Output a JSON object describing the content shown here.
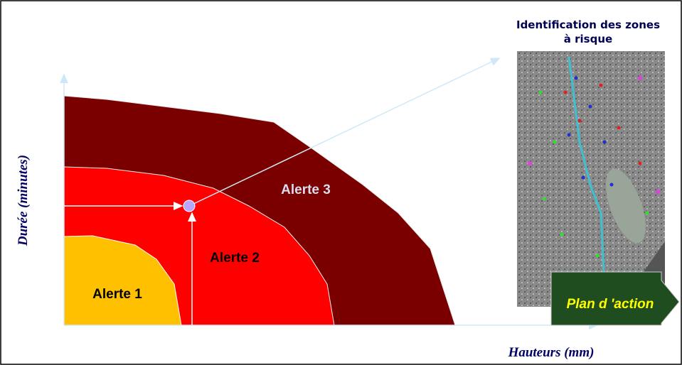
{
  "title": {
    "lines": [
      "Identification des zones",
      "à risque"
    ]
  },
  "axes": {
    "y_label": "Durée (minutes)",
    "x_label": "Hauteurs (mm)"
  },
  "zones": [
    {
      "label": "Alerte 1"
    },
    {
      "label": "Alerte 2"
    },
    {
      "label": "Alerte 3"
    }
  ],
  "action": {
    "label": "Plan d 'action"
  }
}
